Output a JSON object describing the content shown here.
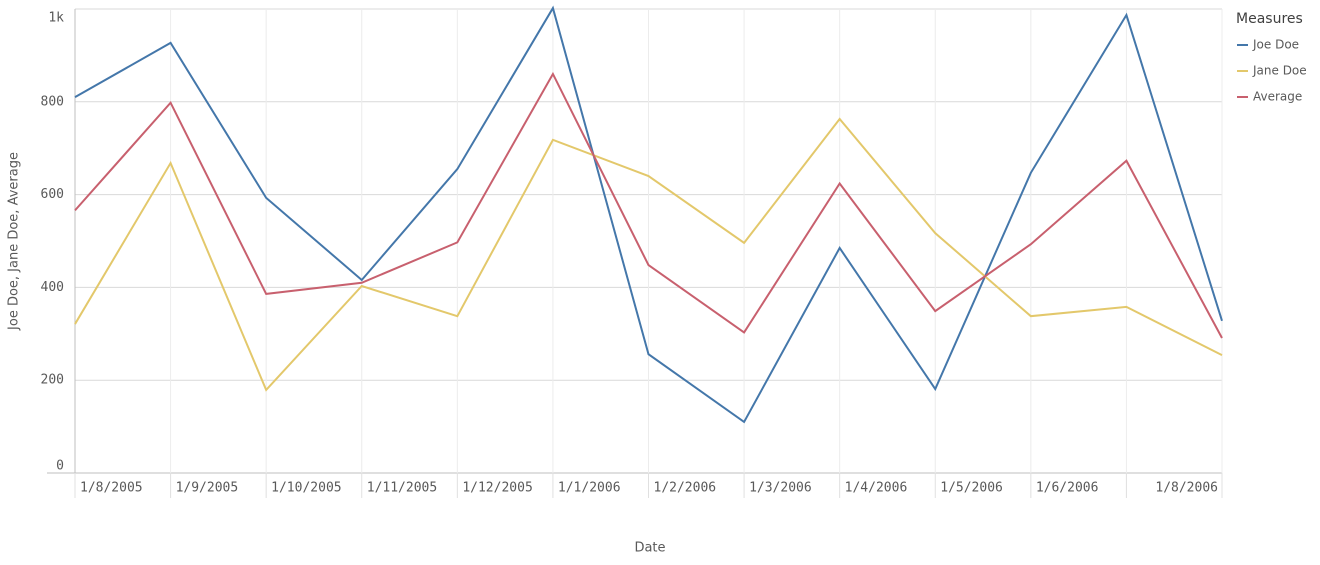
{
  "chart_data": {
    "type": "line",
    "categories": [
      "1/8/2005",
      "1/9/2005",
      "1/10/2005",
      "1/11/2005",
      "1/12/2005",
      "1/1/2006",
      "1/2/2006",
      "1/3/2006",
      "1/4/2006",
      "1/5/2006",
      "1/6/2006",
      null,
      "1/8/2006"
    ],
    "series": [
      {
        "name": "Joe Doe",
        "color": "#4477aa",
        "values": [
          810,
          927,
          593,
          416,
          655,
          1002,
          256,
          110,
          485,
          181,
          647,
          987,
          328
        ]
      },
      {
        "name": "Jane Doe",
        "color": "#e3c86b",
        "values": [
          321,
          668,
          179,
          403,
          338,
          718,
          640,
          496,
          763,
          517,
          338,
          358,
          254
        ]
      },
      {
        "name": "Average",
        "color": "#c8606e",
        "values": [
          566,
          798,
          386,
          410,
          497,
          860,
          448,
          303,
          624,
          349,
          493,
          673,
          291
        ]
      }
    ],
    "ylim": [
      0,
      1000
    ],
    "yticks": [
      0,
      200,
      400,
      600,
      800,
      {
        "value": 1000,
        "label": "1k"
      }
    ],
    "xlabel": "Date",
    "ylabel": "Joe Doe, Jane Doe, Average",
    "legend_title": "Measures",
    "legend": "right",
    "grid": true
  }
}
